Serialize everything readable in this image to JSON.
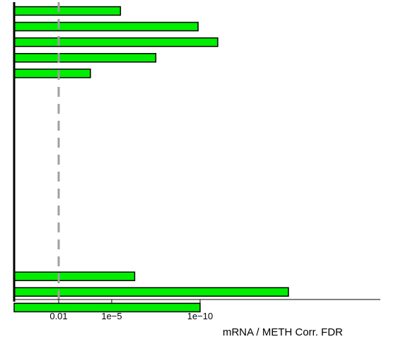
{
  "chart_data": {
    "type": "bar",
    "orientation": "horizontal",
    "xlabel": "mRNA / METH Corr. FDR",
    "x_scale": "-log10",
    "x_ticks": [
      {
        "value": 0.01,
        "label": "0.01"
      },
      {
        "value": 1e-05,
        "label": "1e−5"
      },
      {
        "value": 1e-10,
        "label": "1e−10"
      }
    ],
    "xlim_neglog10": [
      0.5,
      17.0
    ],
    "threshold": {
      "value": 0.01,
      "style": "dashed",
      "color": "#a0a0a0"
    },
    "bar_color": "#00ee00",
    "bars_top_to_bottom": [
      {
        "fdr": 3.2e-06
      },
      {
        "fdr": 1.3e-10
      },
      {
        "fdr": 1e-11
      },
      {
        "fdr": 3.2e-08
      },
      {
        "fdr": 0.00016
      },
      {
        "fdr": null
      },
      {
        "fdr": null
      },
      {
        "fdr": null
      },
      {
        "fdr": null
      },
      {
        "fdr": null
      },
      {
        "fdr": null
      },
      {
        "fdr": null
      },
      {
        "fdr": null
      },
      {
        "fdr": null
      },
      {
        "fdr": null
      },
      {
        "fdr": null
      },
      {
        "fdr": null
      },
      {
        "fdr": 5e-07
      },
      {
        "fdr": 1e-15
      },
      {
        "fdr": 1e-10
      }
    ]
  }
}
